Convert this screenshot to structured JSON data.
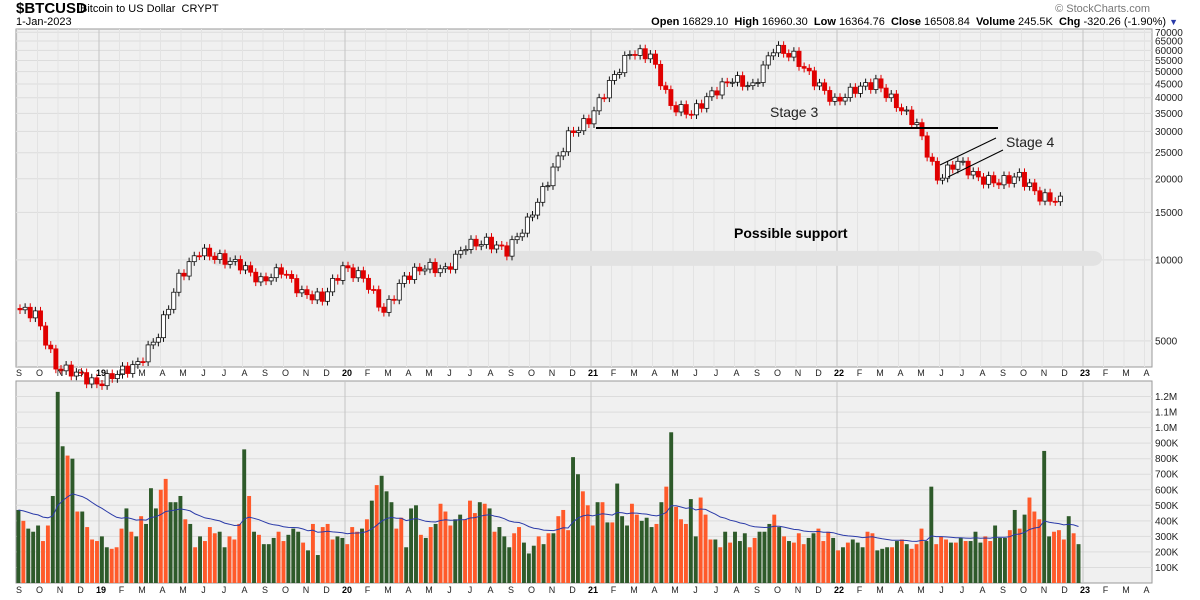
{
  "header": {
    "symbol": "$BTCUSD",
    "name": "Bitcoin to US Dollar",
    "exchange": "CRYPT",
    "date": "1-Jan-2023",
    "credit": "© StockCharts.com",
    "open_label": "Open",
    "open": "16829.10",
    "high_label": "High",
    "high": "16960.30",
    "low_label": "Low",
    "low": "16364.76",
    "close_label": "Close",
    "close": "16508.84",
    "volume_label": "Volume",
    "volume": "245.5K",
    "chg_label": "Chg",
    "chg": "-320.26 (-1.90%)"
  },
  "colors": {
    "up": "#111111",
    "down": "#e00000",
    "vol_up": "#2e5a2a",
    "vol_down": "#ff5a2a",
    "ma": "#2a3aa8",
    "panel_bg": "#f0f0f0"
  },
  "chart_data": {
    "type": "candlestick",
    "price_scale": "log",
    "price_ylim": [
      4000,
      72000
    ],
    "price_ticks": [
      70000,
      65000,
      60000,
      55000,
      50000,
      45000,
      40000,
      35000,
      30000,
      25000,
      20000,
      15000,
      10000,
      5000
    ],
    "month_labels": [
      "S",
      "O",
      "N",
      "D",
      "19",
      "F",
      "M",
      "A",
      "M",
      "J",
      "J",
      "A",
      "S",
      "O",
      "N",
      "D",
      "20",
      "F",
      "M",
      "A",
      "M",
      "J",
      "J",
      "A",
      "S",
      "O",
      "N",
      "D",
      "21",
      "F",
      "M",
      "A",
      "M",
      "J",
      "J",
      "A",
      "S",
      "O",
      "N",
      "D",
      "22",
      "F",
      "M",
      "A",
      "M",
      "J",
      "J",
      "A",
      "S",
      "O",
      "N",
      "D",
      "23",
      "F",
      "M",
      "A"
    ],
    "bold_labels": [
      "19",
      "20",
      "21",
      "22",
      "23"
    ],
    "monthly_close": [
      6600,
      6300,
      4000,
      3800,
      3450,
      3800,
      4100,
      5300,
      8600,
      10800,
      10100,
      9600,
      8300,
      9200,
      7500,
      7200,
      9350,
      8600,
      6400,
      8600,
      9450,
      9150,
      11350,
      11650,
      10800,
      13800,
      19700,
      29000,
      33100,
      45200,
      58900,
      57700,
      37300,
      35000,
      41500,
      47100,
      43800,
      61300,
      57000,
      46300,
      38500,
      43200,
      45500,
      37700,
      31800,
      19900,
      23300,
      20050,
      19430,
      20500,
      17160,
      16550
    ],
    "weekly_volume_k": [
      470,
      400,
      350,
      330,
      370,
      270,
      370,
      560,
      1230,
      880,
      820,
      800,
      460,
      460,
      360,
      280,
      270,
      300,
      230,
      220,
      230,
      350,
      480,
      330,
      300,
      430,
      380,
      610,
      480,
      600,
      670,
      520,
      520,
      560,
      410,
      380,
      230,
      300,
      270,
      360,
      320,
      330,
      230,
      300,
      280,
      380,
      860,
      560,
      330,
      310,
      250,
      250,
      290,
      330,
      270,
      310,
      350,
      330,
      260,
      210,
      380,
      180,
      360,
      380,
      280,
      300,
      290,
      250,
      360,
      330,
      350,
      410,
      530,
      630,
      690,
      590,
      520,
      350,
      420,
      230,
      480,
      500,
      310,
      290,
      360,
      380,
      510,
      460,
      370,
      410,
      440,
      410,
      530,
      450,
      520,
      510,
      480,
      330,
      360,
      300,
      230,
      320,
      360,
      260,
      190,
      240,
      300,
      250,
      320,
      320,
      430,
      470,
      340,
      810,
      700,
      590,
      500,
      370,
      520,
      520,
      390,
      390,
      640,
      430,
      370,
      510,
      440,
      400,
      420,
      360,
      380,
      520,
      620,
      970,
      490,
      410,
      380,
      540,
      300,
      550,
      440,
      280,
      280,
      230,
      330,
      260,
      330,
      270,
      320,
      230,
      290,
      330,
      330,
      380,
      440,
      360,
      300,
      270,
      260,
      320,
      250,
      290,
      320,
      350,
      270,
      330,
      290,
      210,
      230,
      260,
      280,
      260,
      230,
      330,
      320,
      210,
      220,
      230,
      230,
      270,
      280,
      250,
      220,
      250,
      350,
      270,
      620,
      250,
      300,
      280,
      260,
      260,
      290,
      270,
      270,
      330,
      260,
      300,
      270,
      370,
      290,
      290,
      340,
      470,
      350,
      440,
      550,
      460,
      410,
      850,
      300,
      330,
      340,
      280,
      430,
      320,
      250
    ]
  },
  "annotations": {
    "stage3": "Stage 3",
    "stage4": "Stage 4",
    "support": "Possible support"
  }
}
